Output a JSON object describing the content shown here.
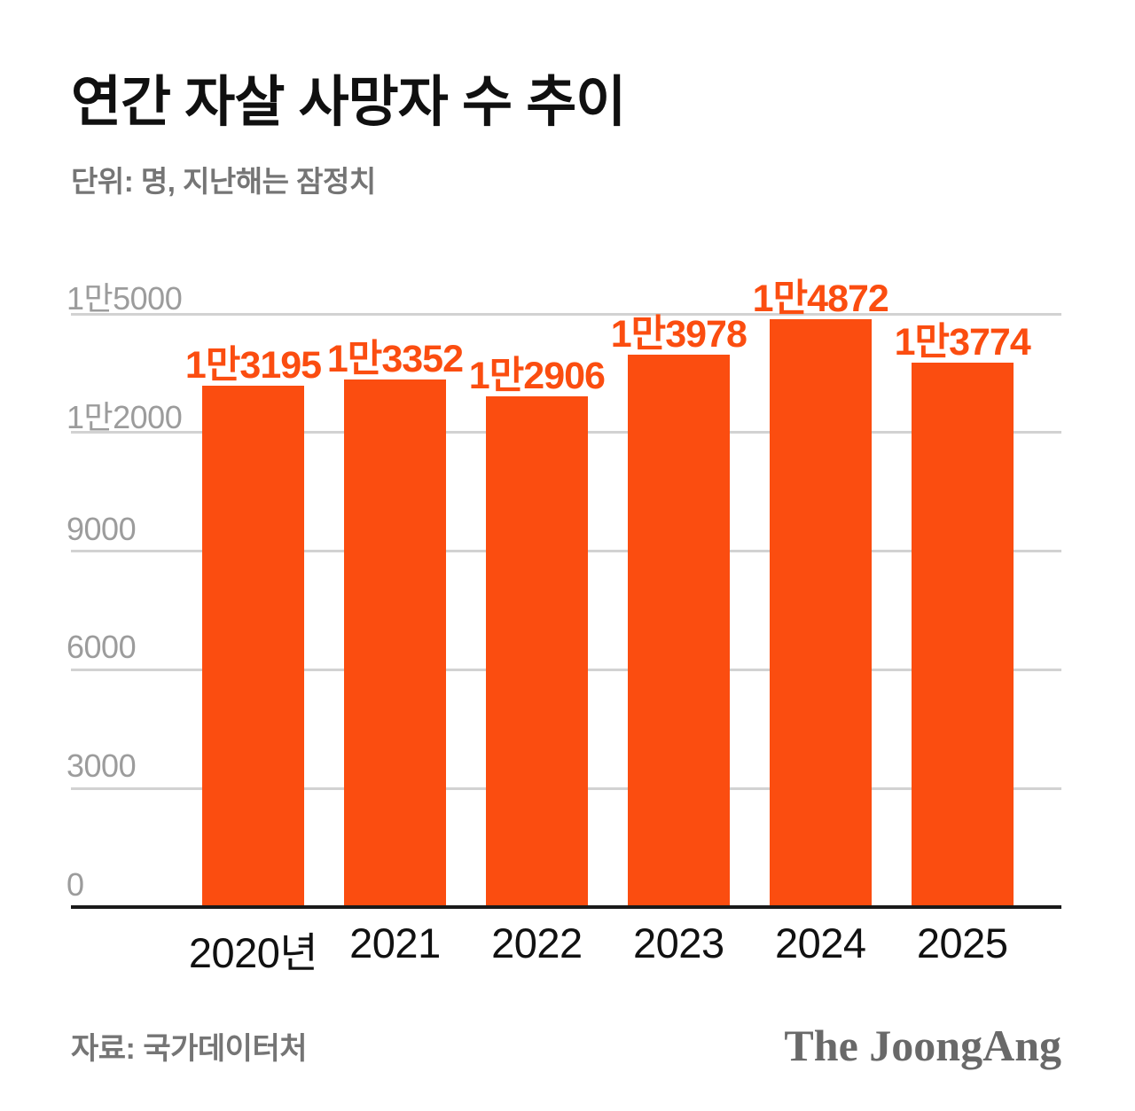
{
  "header": {
    "title": "연간 자살 사망자 수 추이",
    "subtitle": "단위: 명, 지난해는 잠정치"
  },
  "chart_data": {
    "type": "bar",
    "title": "연간 자살 사망자 수 추이",
    "unit_note": "단위: 명, 지난해는 잠정치",
    "categories": [
      "2020년",
      "2021",
      "2022",
      "2023",
      "2024",
      "2025"
    ],
    "values": [
      13195,
      13352,
      12906,
      13978,
      14872,
      13774
    ],
    "value_labels": [
      "1만3195",
      "1만3352",
      "1만2906",
      "1만3978",
      "1만4872",
      "1만3774"
    ],
    "y_ticks": [
      {
        "value": 15000,
        "label": "1만5000"
      },
      {
        "value": 12000,
        "label": "1만2000"
      },
      {
        "value": 9000,
        "label": "9000"
      },
      {
        "value": 6000,
        "label": "6000"
      },
      {
        "value": 3000,
        "label": "3000"
      },
      {
        "value": 0,
        "label": "0"
      }
    ],
    "ylim": [
      0,
      15000
    ],
    "grid": true,
    "legend": "none",
    "bar_color": "#FB4D10"
  },
  "footer": {
    "source": "자료: 국가데이터처",
    "logo": "The JoongAng"
  },
  "colors": {
    "accent": "#FB4D10",
    "grid": "#d2d2d2",
    "axis": "#1a1a1a",
    "tick_label": "#9c9c9c",
    "subtitle": "#757575",
    "title": "#101010",
    "logo": "#696969"
  }
}
